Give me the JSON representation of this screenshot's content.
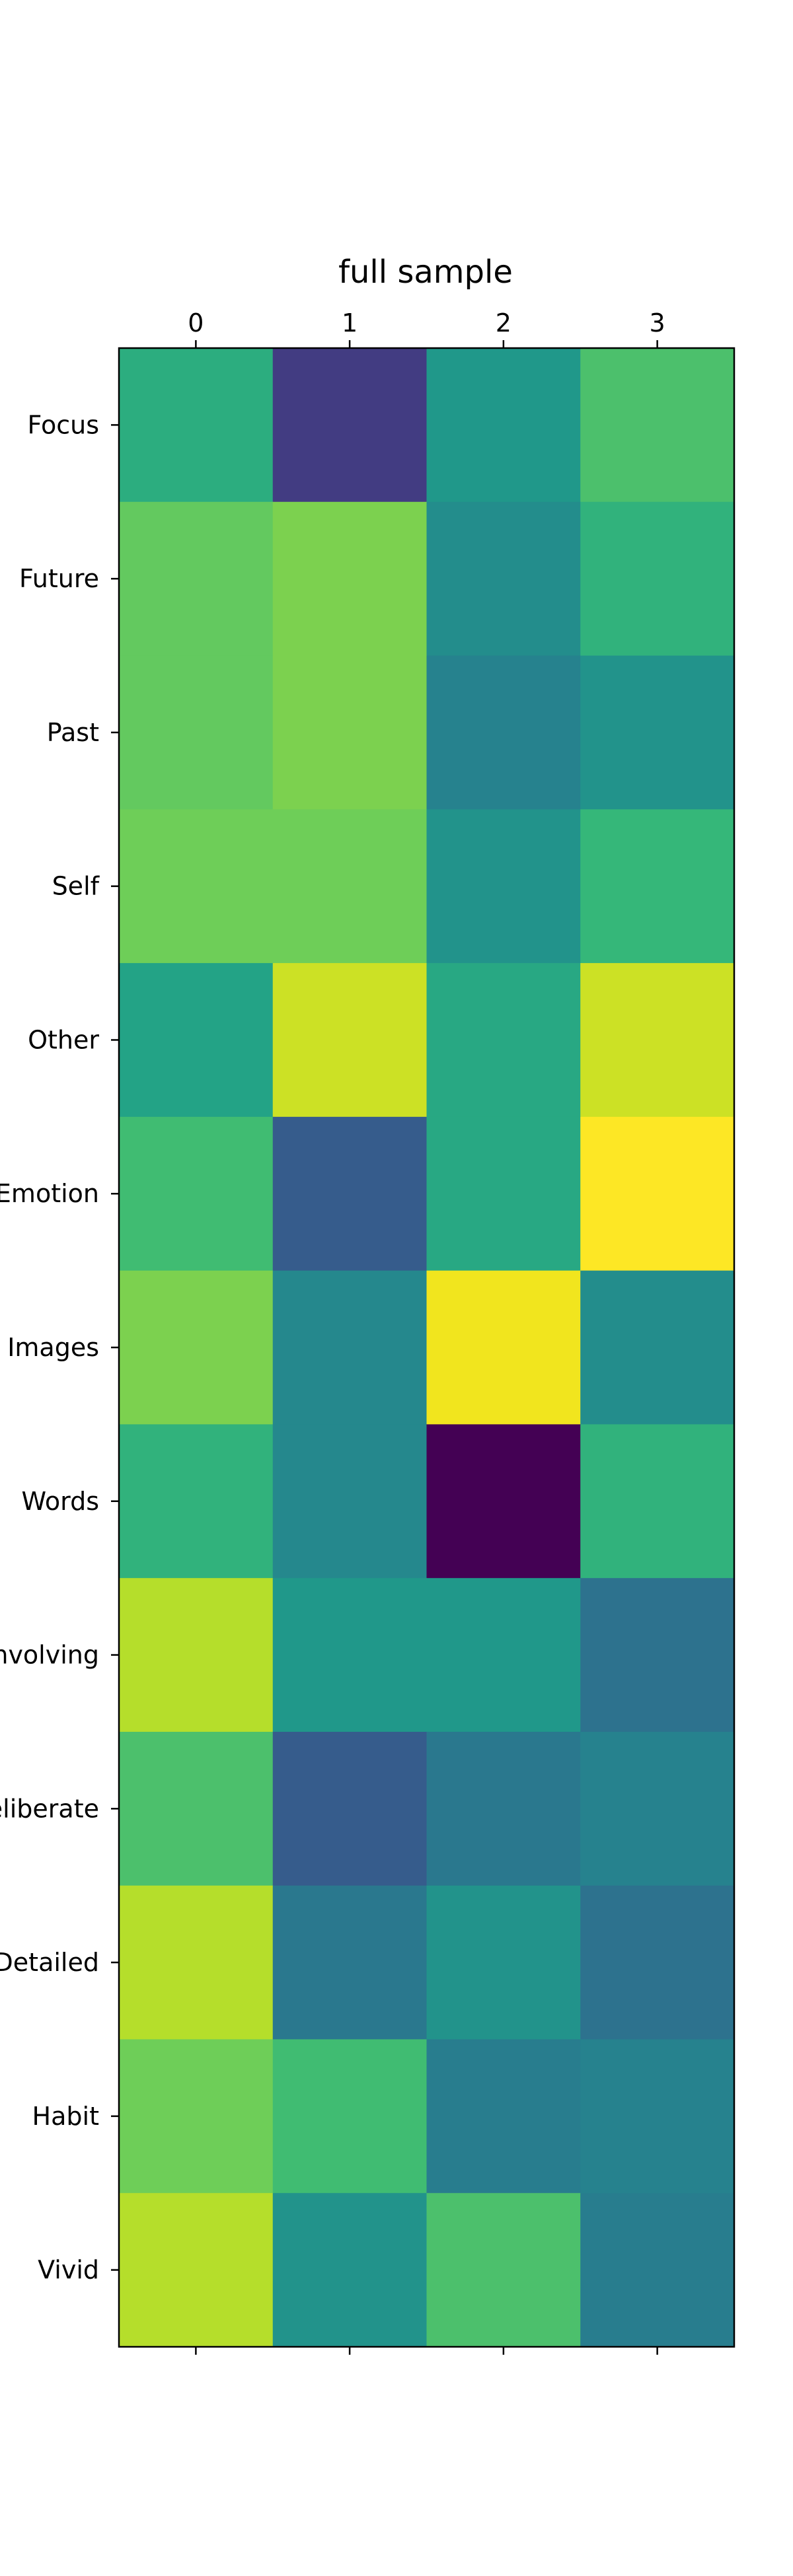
{
  "chart_data": {
    "type": "heatmap",
    "title": "full sample",
    "xlabel": "",
    "ylabel": "",
    "x_categories": [
      "0",
      "1",
      "2",
      "3"
    ],
    "y_categories": [
      "Focus",
      "Future",
      "Past",
      "Self",
      "Other",
      "Emotion",
      "Images",
      "Words",
      "Involving",
      "Deliberate",
      "Detailed",
      "Habit",
      "Vivid"
    ],
    "colormap": "viridis",
    "color_range": [
      0,
      1
    ],
    "grid": false,
    "colorbar": false,
    "values": [
      [
        0.56,
        0.16,
        0.48,
        0.64
      ],
      [
        0.68,
        0.72,
        0.44,
        0.58
      ],
      [
        0.68,
        0.72,
        0.4,
        0.46
      ],
      [
        0.7,
        0.7,
        0.46,
        0.6
      ],
      [
        0.52,
        0.84,
        0.54,
        0.84
      ],
      [
        0.62,
        0.26,
        0.54,
        1.0
      ],
      [
        0.72,
        0.42,
        0.92,
        0.44
      ],
      [
        0.58,
        0.42,
        0.0,
        0.58
      ],
      [
        0.8,
        0.48,
        0.48,
        0.34
      ],
      [
        0.64,
        0.26,
        0.36,
        0.4
      ],
      [
        0.8,
        0.36,
        0.46,
        0.34
      ],
      [
        0.7,
        0.62,
        0.38,
        0.4
      ],
      [
        0.8,
        0.46,
        0.64,
        0.38
      ]
    ]
  }
}
